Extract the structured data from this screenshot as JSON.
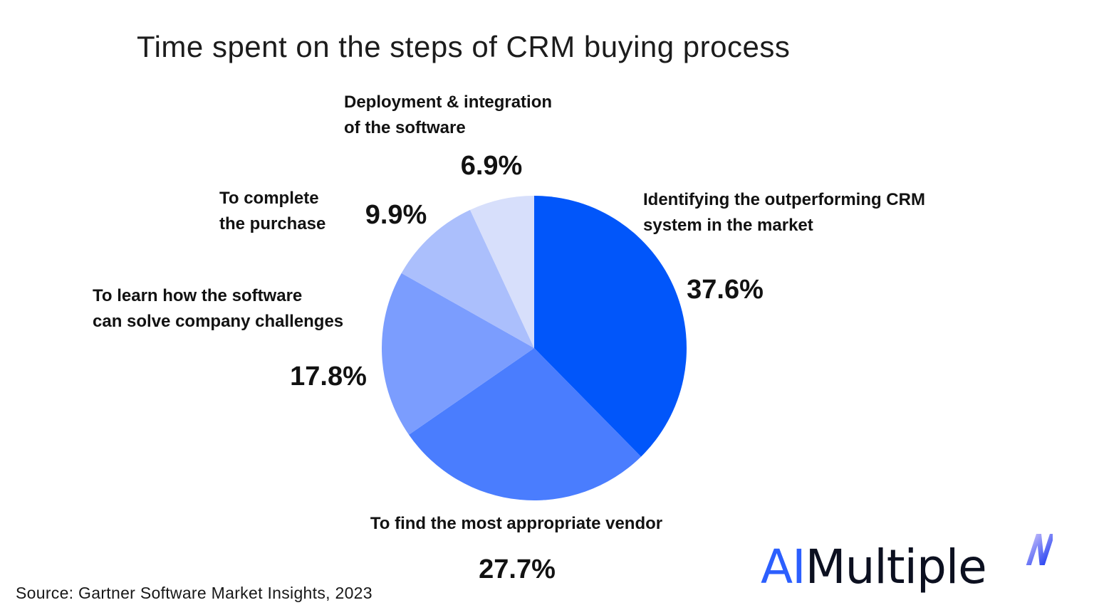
{
  "title": "Time spent on the steps of CRM buying process",
  "source": "Source: Gartner Software Market Insights, 2023",
  "logo": {
    "prefix": "AI",
    "rest": "Multiple",
    "prefix_color": "#2C5FFE",
    "rest_color": "#0C1020",
    "mark_icon": "n-lightning-mark",
    "mark_gradient": [
      "#B5B1FA",
      "#2B46F2"
    ]
  },
  "chart_data": {
    "type": "pie",
    "title": "Time spent on the steps of CRM buying process",
    "start_angle_deg": 0,
    "direction": "clockwise",
    "legend": "none",
    "labels_position": "outside-callouts",
    "slices": [
      {
        "label": "Identifying the outperforming CRM system in the market",
        "label_lines": [
          "Identifying the outperforming CRM",
          "system in the market"
        ],
        "value": 37.6,
        "value_label": "37.6%",
        "color": "#0156FA"
      },
      {
        "label": "To find the most appropriate vendor",
        "label_lines": [
          "To find the most appropriate vendor"
        ],
        "value": 27.7,
        "value_label": "27.7%",
        "color": "#4A7DFE"
      },
      {
        "label": "To learn how the software can solve company challenges",
        "label_lines": [
          "To learn how the software",
          "can solve company challenges"
        ],
        "value": 17.8,
        "value_label": "17.8%",
        "color": "#7B9DFE"
      },
      {
        "label": "To complete the purchase",
        "label_lines": [
          "To complete",
          "the purchase"
        ],
        "value": 9.9,
        "value_label": "9.9%",
        "color": "#ABBFFC"
      },
      {
        "label": "Deployment & integration of the software",
        "label_lines": [
          "Deployment & integration",
          "of the software"
        ],
        "value": 6.9,
        "value_label": "6.9%",
        "color": "#D7DFFB"
      }
    ]
  }
}
